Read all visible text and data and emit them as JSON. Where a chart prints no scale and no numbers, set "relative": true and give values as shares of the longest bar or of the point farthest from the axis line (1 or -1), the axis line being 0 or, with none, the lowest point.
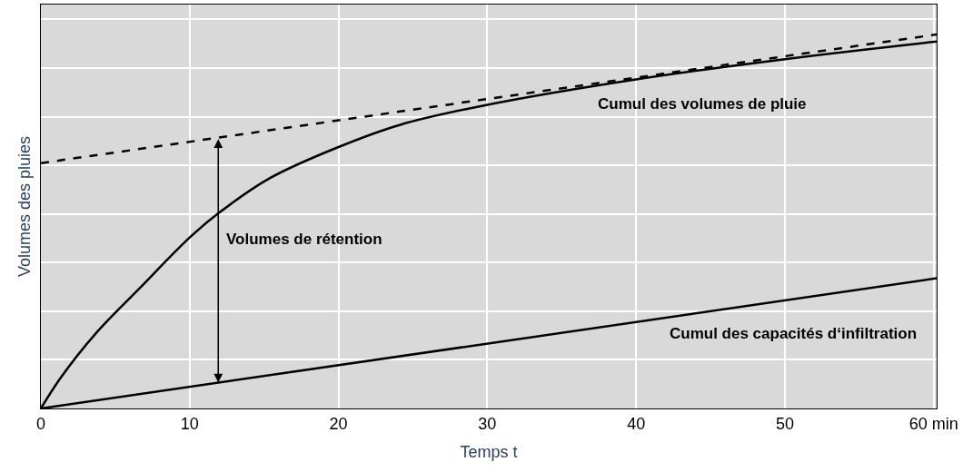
{
  "chart_data": {
    "type": "line",
    "relative": true,
    "xlabel": "Temps t",
    "ylabel": "Volumes des pluies",
    "xlim": [
      0,
      60.2
    ],
    "xticks": [
      0,
      10,
      20,
      30,
      40,
      50,
      {
        "value": 60,
        "label": "60 min"
      }
    ],
    "grid": true,
    "line_style": "solid",
    "marker": "none",
    "series": [
      {
        "name": "Cumul des volumes de pluie",
        "color": "#000000",
        "x": [
          0,
          1.35,
          3.7,
          6.6,
          10,
          11.9,
          15.4,
          20,
          24.1,
          30,
          40,
          50,
          60.2
        ],
        "values": [
          0,
          0.083,
          0.201,
          0.32,
          0.457,
          0.521,
          0.616,
          0.699,
          0.758,
          0.812,
          0.88,
          0.934,
          0.981
        ]
      },
      {
        "name": "Cumul des capacités d‘infiltration",
        "color": "#000000",
        "x": [
          0,
          60.2
        ],
        "values": [
          0,
          0.348
        ]
      },
      {
        "color": "#000000",
        "line_style": "dashed",
        "x": [
          0,
          60.2
        ],
        "values": [
          0.656,
          1.0
        ]
      }
    ],
    "annotations": [
      "Volumes de rétention"
    ]
  }
}
